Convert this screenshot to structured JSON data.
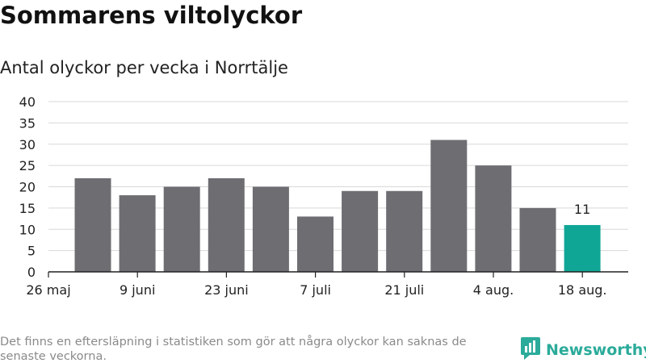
{
  "title": "Sommarens viltolyckor",
  "subtitle": "Antal olyckor per vecka i Norrtälje",
  "footnote": "Det finns en eftersläpning i statistiken som gör att några olyckor kan saknas de senaste veckorna.",
  "brand": {
    "name": "Newsworthy",
    "icon": "bar-chart-logo-icon",
    "color": "#2bab9a"
  },
  "colors": {
    "bar": "#6e6d72",
    "highlight": "#10a696",
    "grid": "#d9d9d9",
    "axis": "#222222"
  },
  "chart_data": {
    "type": "bar",
    "title": "Sommarens viltolyckor",
    "subtitle": "Antal olyckor per vecka i Norrtälje",
    "xlabel": "",
    "ylabel": "",
    "ylim": [
      0,
      40
    ],
    "y_ticks": [
      "0",
      "5",
      "10",
      "15",
      "20",
      "25",
      "30",
      "35",
      "40"
    ],
    "x_ticks": [
      "26 maj",
      "9 juni",
      "23 juni",
      "7 juli",
      "21 juli",
      "4 aug.",
      "18 aug."
    ],
    "grid": true,
    "values": [
      22,
      18,
      20,
      22,
      20,
      13,
      19,
      19,
      31,
      25,
      15,
      11
    ],
    "highlight_index": 11,
    "highlight_label": "11"
  }
}
